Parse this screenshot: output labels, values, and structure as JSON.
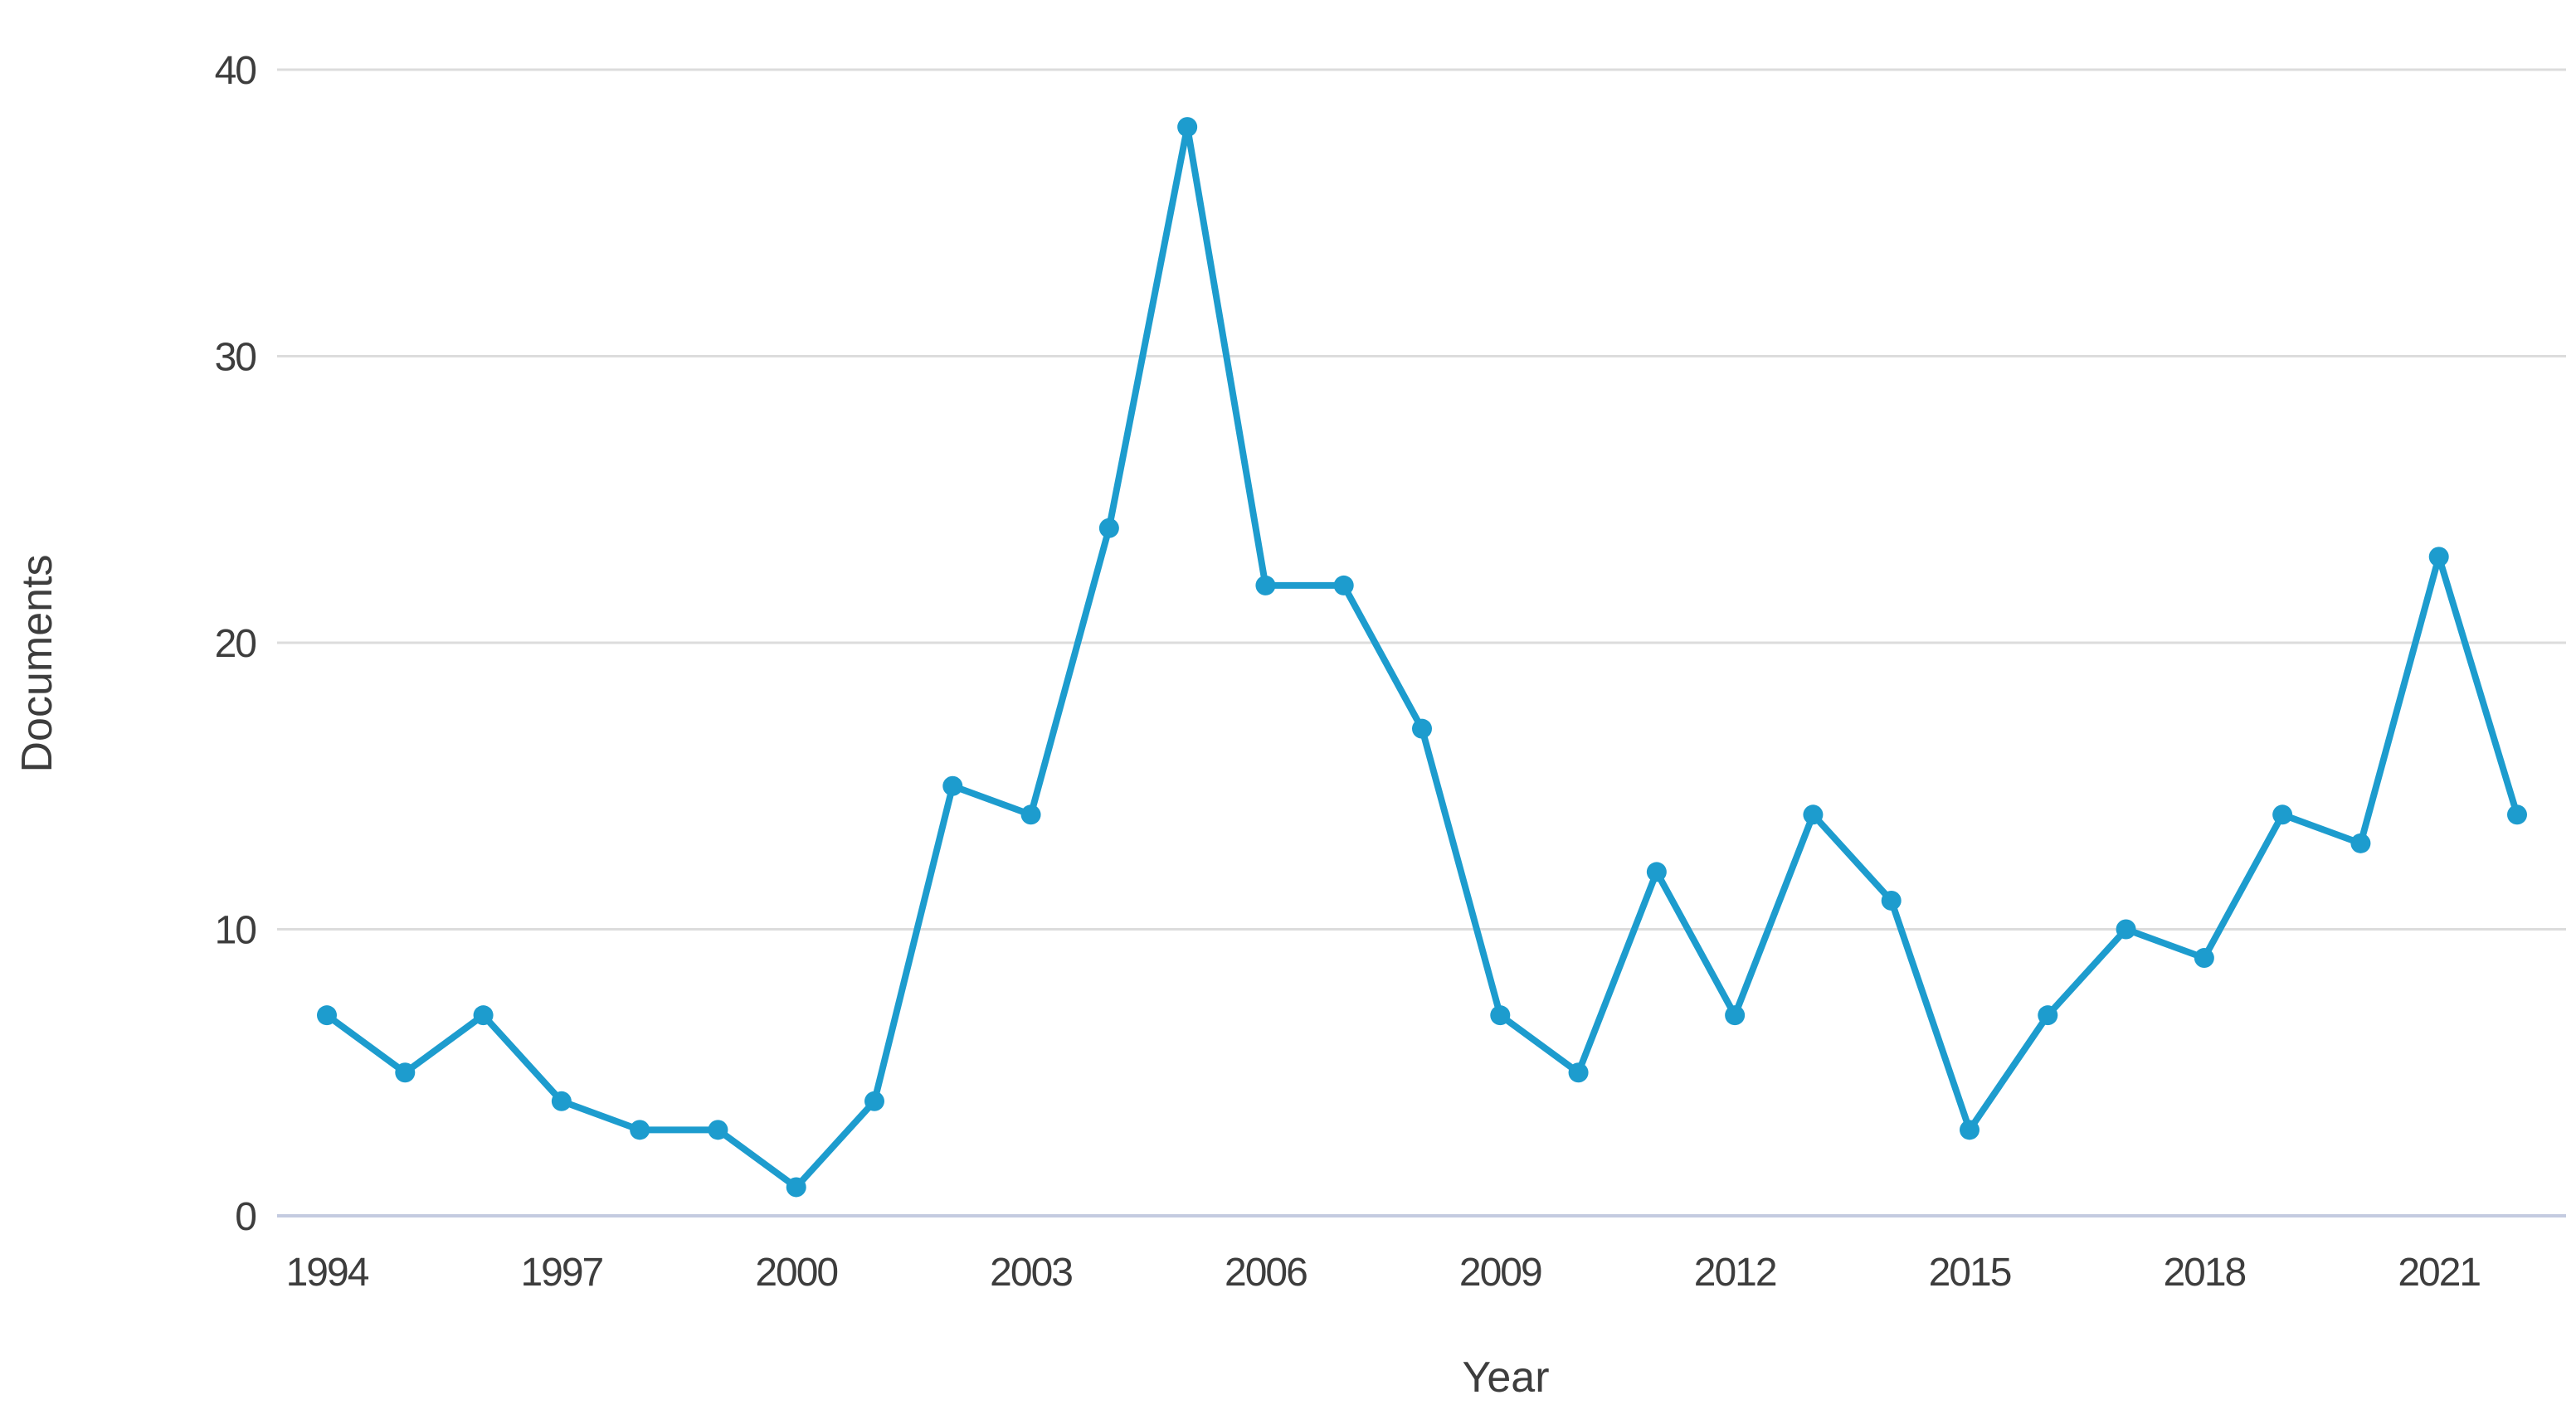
{
  "chart_data": {
    "type": "line",
    "title": "",
    "xlabel": "Year",
    "ylabel": "Documents",
    "x": [
      1994,
      1995,
      1996,
      1997,
      1998,
      1999,
      2000,
      2001,
      2002,
      2003,
      2004,
      2005,
      2006,
      2007,
      2008,
      2009,
      2010,
      2011,
      2012,
      2013,
      2014,
      2015,
      2016,
      2017,
      2018,
      2019,
      2020,
      2021,
      2022
    ],
    "series": [
      {
        "name": "Documents",
        "values": [
          7,
          5,
          7,
          4,
          3,
          3,
          1,
          4,
          15,
          14,
          24,
          38,
          22,
          22,
          17,
          7,
          5,
          12,
          7,
          14,
          11,
          3,
          7,
          10,
          9,
          14,
          13,
          23,
          14
        ]
      }
    ],
    "ylim": [
      0,
      40
    ],
    "yticks": [
      0,
      10,
      20,
      30,
      40
    ],
    "xticks": [
      1994,
      1997,
      2000,
      2003,
      2006,
      2009,
      2012,
      2015,
      2018,
      2021
    ],
    "grid": "horizontal",
    "legend_position": "none",
    "line_color": "#1d9cce",
    "marker_color": "#1d9cce",
    "grid_color": "#dcdcdc",
    "zero_axis_color": "#c4cbe0",
    "text_color": "#3d3d3d"
  }
}
